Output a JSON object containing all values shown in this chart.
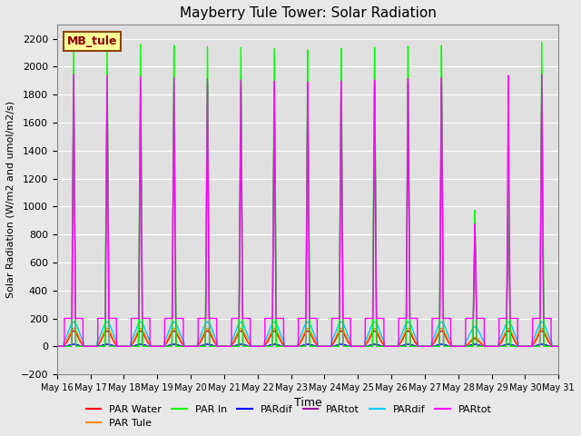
{
  "title": "Mayberry Tule Tower: Solar Radiation",
  "ylabel": "Solar Radiation (W/m2 and umol/m2/s)",
  "xlabel": "Time",
  "ylim": [
    -200,
    2300
  ],
  "yticks": [
    -200,
    0,
    200,
    400,
    600,
    800,
    1000,
    1200,
    1400,
    1600,
    1800,
    2000,
    2200
  ],
  "num_days": 15,
  "xtick_labels": [
    "May 16",
    "May 17",
    "May 18",
    "May 19",
    "May 20",
    "May 21",
    "May 22",
    "May 23",
    "May 24",
    "May 25",
    "May 26",
    "May 27",
    "May 28",
    "May 29",
    "May 30",
    "May 31"
  ],
  "series": [
    {
      "label": "PAR Water",
      "color": "#ff0000"
    },
    {
      "label": "PAR Tule",
      "color": "#ff8800"
    },
    {
      "label": "PAR In",
      "color": "#00ff00"
    },
    {
      "label": "PARdif",
      "color": "#0000ff"
    },
    {
      "label": "PARtot",
      "color": "#aa00aa"
    },
    {
      "label": "PARdif",
      "color": "#00ccff"
    },
    {
      "label": "PARtot",
      "color": "#ff00ff"
    }
  ],
  "legend_label": "MB_tule",
  "bg_color": "#e0e0e0",
  "grid_color": "#ffffff",
  "fig_color": "#e8e8e8"
}
